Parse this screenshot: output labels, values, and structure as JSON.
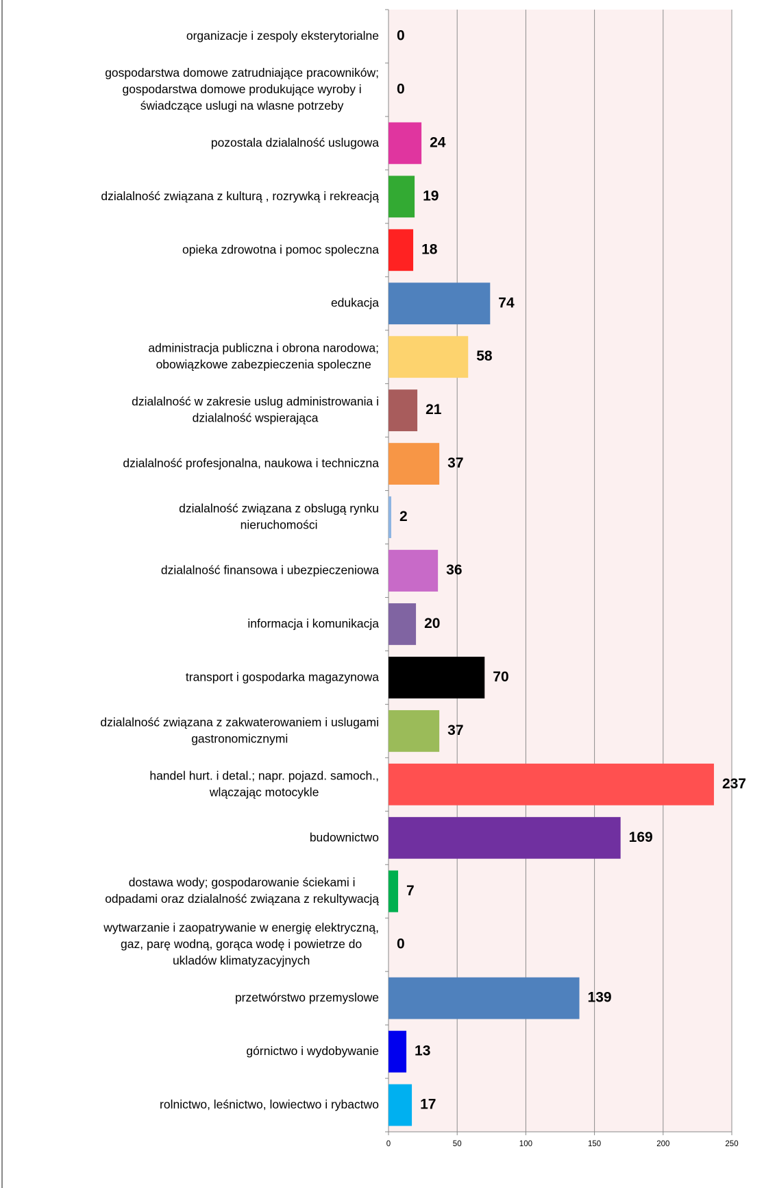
{
  "chart_data": {
    "type": "hbar",
    "categories": [
      "organizacje i zespoly eksterytorialne",
      "gospodarstwa domowe zatrudniające pracowników;\ngospodarstwa domowe produkujące wyroby i\nświadczące uslugi na wlasne potrzeby",
      "pozostala dzialalność uslugowa",
      "dzialalność związana z kulturą , rozrywką i rekreacją",
      "opieka zdrowotna i pomoc spoleczna",
      "edukacja",
      "administracja publiczna i obrona narodowa;\nobowiązkowe zabezpieczenia spoleczne",
      "dzialalność w zakresie uslug administrowania i\ndzialalność wspierająca",
      "dzialalność profesjonalna, naukowa i techniczna",
      "dzialalność związana z obslugą rynku\nnieruchomości",
      "dzialalność finansowa i ubezpieczeniowa",
      "informacja i komunikacja",
      "transport i gospodarka magazynowa",
      "dzialalność związana z zakwaterowaniem i uslugami\ngastronomicznymi",
      "handel hurt. i detal.; napr. pojazd. samoch.,\nwlączając motocykle",
      "budownictwo",
      "dostawa wody; gospodarowanie ściekami i\nodpadami oraz dzialalność związana z rekultywacją",
      "wytwarzanie i zaopatrywanie w energię elektryczną,\ngaz, parę wodną, gorąca wodę i powietrze do\nukladów klimatyzacyjnych",
      "przetwórstwo przemyslowe",
      "górnictwo i wydobywanie",
      "rolnictwo, leśnictwo, lowiectwo i rybactwo"
    ],
    "values": [
      0,
      0,
      24,
      19,
      18,
      74,
      58,
      21,
      37,
      2,
      36,
      20,
      70,
      37,
      237,
      169,
      7,
      0,
      139,
      13,
      17
    ],
    "colors": [
      "#4f81bd",
      "#4f81bd",
      "#e0359f",
      "#33aa33",
      "#ff2222",
      "#4f81bd",
      "#fdd36e",
      "#a85c5c",
      "#f79646",
      "#8db4e2",
      "#c86ac8",
      "#8064a2",
      "#000000",
      "#9bbb59",
      "#ff5050",
      "#7030a0",
      "#00b050",
      "#4f81bd",
      "#4f81bd",
      "#0000ee",
      "#00b0f0"
    ],
    "xlim": [
      0,
      250
    ],
    "xticks": [
      0,
      50,
      100,
      150,
      200,
      250
    ],
    "grid": true
  }
}
